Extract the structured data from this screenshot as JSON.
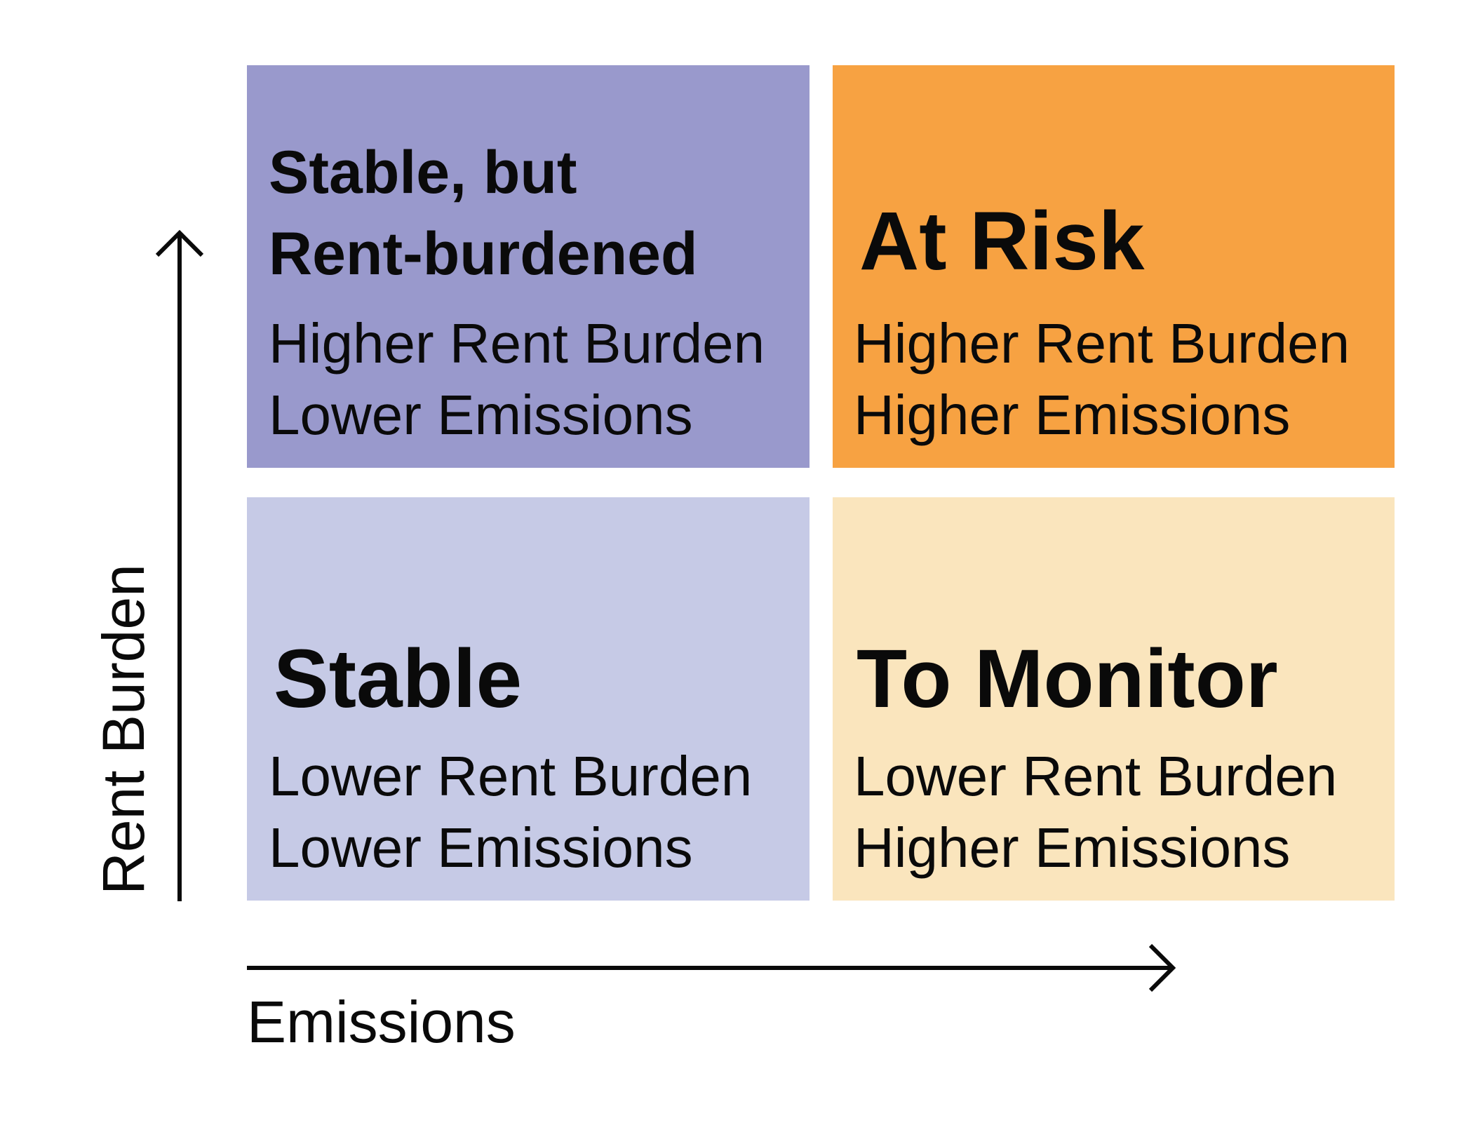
{
  "quadrants": {
    "top_left": {
      "title_lines": [
        "Stable, but",
        "Rent-burdened"
      ],
      "lines": [
        "Higher Rent Burden",
        "Lower Emissions"
      ],
      "color": "#9999cc"
    },
    "top_right": {
      "title_lines": [
        "At Risk"
      ],
      "lines": [
        "Higher Rent Burden",
        "Higher Emissions"
      ],
      "color": "#f7a242"
    },
    "bottom_left": {
      "title_lines": [
        "Stable"
      ],
      "lines": [
        "Lower Rent Burden",
        "Lower Emissions"
      ],
      "color": "#c6cae6"
    },
    "bottom_right": {
      "title_lines": [
        "To Monitor"
      ],
      "lines": [
        "Lower Rent Burden",
        "Higher Emissions"
      ],
      "color": "#fae5bd"
    }
  },
  "axes": {
    "y_label": "Rent Burden",
    "x_label": "Emissions",
    "arrow_color": "#0a0a0a"
  }
}
